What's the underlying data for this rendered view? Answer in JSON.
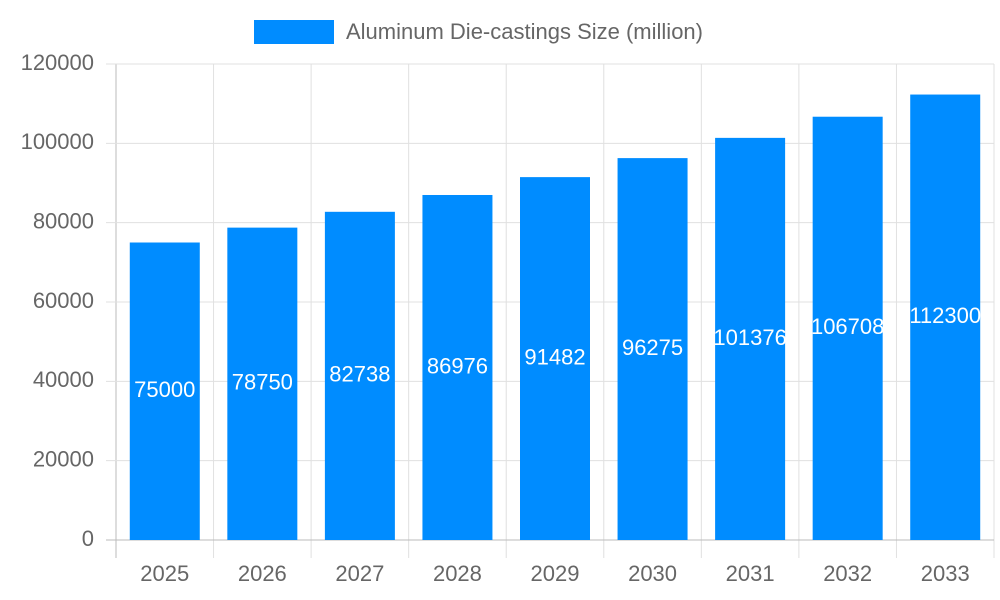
{
  "chart_data": {
    "type": "bar",
    "categories": [
      "2025",
      "2026",
      "2027",
      "2028",
      "2029",
      "2030",
      "2031",
      "2032",
      "2033"
    ],
    "series": [
      {
        "name": "Aluminum Die-castings Size (million)",
        "color": "#008cff",
        "values": [
          75000,
          78750,
          82738,
          86976,
          91482,
          96275,
          101376,
          106708,
          112300
        ]
      }
    ],
    "ylim": [
      0,
      120000
    ],
    "yticks": [
      0,
      20000,
      40000,
      60000,
      80000,
      100000,
      120000
    ],
    "grid": true,
    "legend": "top"
  }
}
